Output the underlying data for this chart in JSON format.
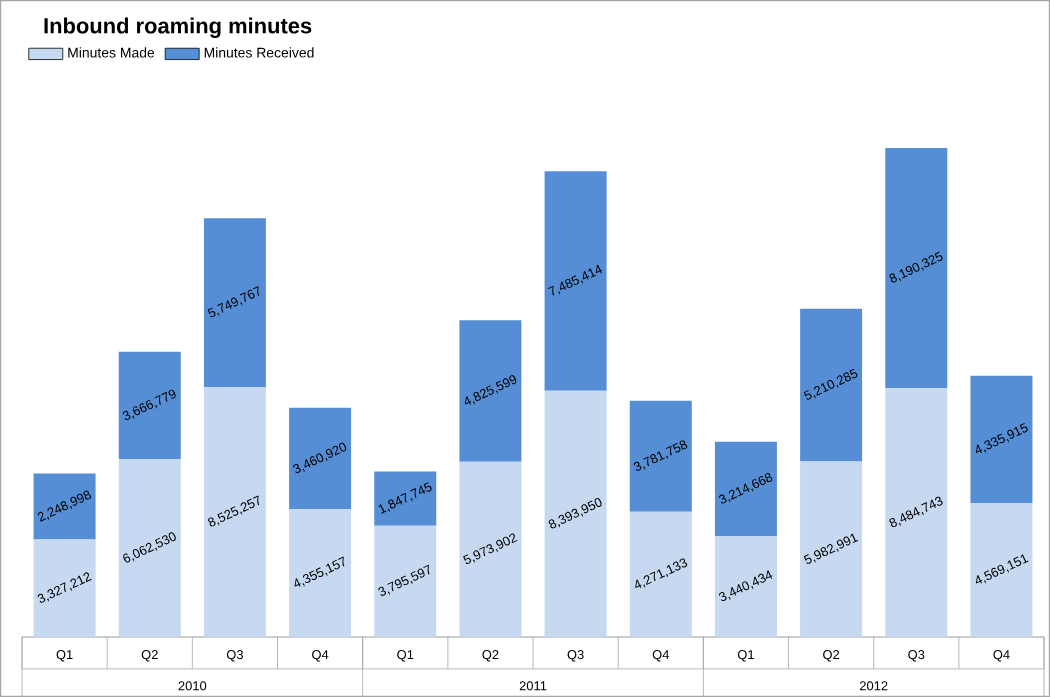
{
  "chart_data": {
    "type": "bar",
    "title": "Inbound roaming minutes",
    "stacked": true,
    "legend": "top left",
    "categories": [
      "Q1",
      "Q2",
      "Q3",
      "Q4",
      "Q1",
      "Q2",
      "Q3",
      "Q4",
      "Q1",
      "Q2",
      "Q3",
      "Q4"
    ],
    "series": [
      {
        "name": "Minutes Made",
        "color": "#c6d9f1",
        "values": [
          3327212,
          6062530,
          8525257,
          4355157,
          3795597,
          5973902,
          8393950,
          4271133,
          3440434,
          5982991,
          8484743,
          4569151
        ],
        "value_labels": [
          "3,327,212",
          "6,062,530",
          "8,525,257",
          "4,355,157",
          "3,795,597",
          "5,973,902",
          "8,393,950",
          "4,271,133",
          "3,440,434",
          "5,982,991",
          "8,484,743",
          "4,569,151"
        ]
      },
      {
        "name": "Minutes Received",
        "color": "#558ed5",
        "values": [
          2248998,
          3666779,
          5749767,
          3460920,
          1847745,
          4825599,
          7485414,
          3781758,
          3214668,
          5210285,
          8190325,
          4335915
        ],
        "value_labels": [
          "2,248,998",
          "3,666,779",
          "5,749,767",
          "3,460,920",
          "1,847,745",
          "4,825,599",
          "7,485,414",
          "3,781,758",
          "3,214,668",
          "5,210,285",
          "8,190,325",
          "4,335,915"
        ]
      }
    ],
    "annotations": [
      "2010",
      "2011",
      "2012"
    ]
  }
}
